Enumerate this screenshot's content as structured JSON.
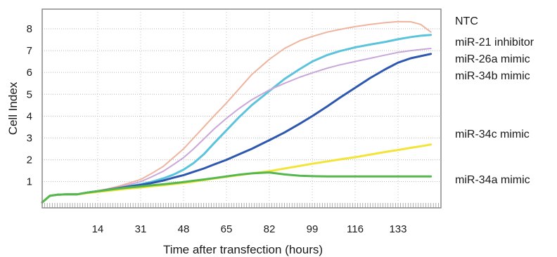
{
  "chart_data": {
    "type": "line",
    "xlabel": "Time after transfection (hours)",
    "ylabel": "Cell Index",
    "xlim": [
      -8,
      150
    ],
    "ylim": [
      -0.2,
      8.9
    ],
    "xticks": [
      14,
      31,
      48,
      65,
      82,
      99,
      116,
      133
    ],
    "yticks": [
      1,
      2,
      3,
      4,
      5,
      6,
      7,
      8
    ],
    "grid": true,
    "legend_position": "right",
    "series": [
      {
        "name": "NTC",
        "color": "#efb49e",
        "x": [
          -8,
          -5,
          -2,
          2,
          6,
          10,
          14,
          18,
          22,
          26,
          31,
          35,
          40,
          44,
          48,
          52,
          56,
          60,
          65,
          70,
          75,
          82,
          88,
          94,
          99,
          105,
          110,
          116,
          122,
          128,
          133,
          138,
          142,
          146
        ],
        "y": [
          0.05,
          0.35,
          0.4,
          0.42,
          0.42,
          0.5,
          0.58,
          0.67,
          0.78,
          0.92,
          1.1,
          1.35,
          1.7,
          2.1,
          2.5,
          3.0,
          3.5,
          4.0,
          4.6,
          5.25,
          5.9,
          6.6,
          7.1,
          7.45,
          7.65,
          7.85,
          7.97,
          8.1,
          8.2,
          8.28,
          8.33,
          8.32,
          8.2,
          7.85
        ]
      },
      {
        "name": "miR-21 inhibitor",
        "color": "#5bc4dc",
        "x": [
          -8,
          -5,
          -2,
          2,
          6,
          10,
          14,
          18,
          22,
          26,
          31,
          35,
          40,
          44,
          48,
          52,
          56,
          60,
          65,
          70,
          75,
          82,
          88,
          94,
          99,
          105,
          110,
          116,
          122,
          128,
          133,
          138,
          142,
          146
        ],
        "y": [
          0.05,
          0.35,
          0.4,
          0.42,
          0.42,
          0.5,
          0.56,
          0.63,
          0.7,
          0.78,
          0.88,
          0.98,
          1.15,
          1.32,
          1.55,
          1.85,
          2.25,
          2.75,
          3.35,
          3.95,
          4.5,
          5.15,
          5.7,
          6.15,
          6.5,
          6.8,
          6.98,
          7.15,
          7.28,
          7.4,
          7.52,
          7.62,
          7.68,
          7.72
        ]
      },
      {
        "name": "miR-26a mimic",
        "color": "#c9a8d9",
        "x": [
          -8,
          -5,
          -2,
          2,
          6,
          10,
          14,
          18,
          22,
          26,
          31,
          35,
          40,
          44,
          48,
          52,
          56,
          60,
          65,
          70,
          75,
          82,
          88,
          94,
          99,
          105,
          110,
          116,
          122,
          128,
          133,
          138,
          142,
          146
        ],
        "y": [
          0.05,
          0.35,
          0.4,
          0.42,
          0.42,
          0.5,
          0.57,
          0.65,
          0.74,
          0.85,
          1.0,
          1.2,
          1.48,
          1.78,
          2.1,
          2.5,
          2.95,
          3.4,
          3.9,
          4.35,
          4.75,
          5.2,
          5.5,
          5.78,
          5.98,
          6.2,
          6.35,
          6.5,
          6.65,
          6.8,
          6.92,
          7.0,
          7.05,
          7.1
        ]
      },
      {
        "name": "miR-34b mimic",
        "color": "#2e57b0",
        "x": [
          -8,
          -5,
          -2,
          2,
          6,
          10,
          14,
          18,
          22,
          26,
          31,
          35,
          40,
          44,
          48,
          52,
          56,
          60,
          65,
          70,
          75,
          82,
          88,
          94,
          99,
          105,
          110,
          116,
          122,
          128,
          133,
          138,
          142,
          146
        ],
        "y": [
          0.05,
          0.35,
          0.4,
          0.42,
          0.42,
          0.5,
          0.56,
          0.63,
          0.7,
          0.77,
          0.85,
          0.93,
          1.05,
          1.18,
          1.3,
          1.45,
          1.6,
          1.78,
          2.0,
          2.25,
          2.5,
          2.9,
          3.25,
          3.65,
          4.0,
          4.45,
          4.85,
          5.3,
          5.75,
          6.15,
          6.45,
          6.65,
          6.75,
          6.85
        ]
      },
      {
        "name": "miR-34c mimic",
        "color": "#f3e438",
        "x": [
          -8,
          -5,
          -2,
          2,
          6,
          10,
          14,
          18,
          22,
          26,
          31,
          35,
          40,
          44,
          48,
          52,
          56,
          60,
          65,
          70,
          75,
          82,
          88,
          94,
          99,
          105,
          110,
          116,
          122,
          128,
          133,
          138,
          142,
          146
        ],
        "y": [
          0.05,
          0.35,
          0.4,
          0.42,
          0.42,
          0.48,
          0.53,
          0.58,
          0.63,
          0.68,
          0.73,
          0.78,
          0.84,
          0.89,
          0.94,
          1.0,
          1.07,
          1.14,
          1.22,
          1.3,
          1.38,
          1.48,
          1.6,
          1.72,
          1.82,
          1.93,
          2.02,
          2.12,
          2.24,
          2.36,
          2.45,
          2.55,
          2.62,
          2.7
        ]
      },
      {
        "name": "miR-34a mimic",
        "color": "#55b84e",
        "x": [
          -8,
          -5,
          -2,
          2,
          6,
          10,
          14,
          18,
          22,
          26,
          31,
          35,
          40,
          44,
          48,
          52,
          56,
          60,
          65,
          70,
          75,
          82,
          88,
          94,
          99,
          105,
          110,
          116,
          122,
          128,
          133,
          138,
          142,
          146
        ],
        "y": [
          0.05,
          0.35,
          0.4,
          0.42,
          0.42,
          0.5,
          0.56,
          0.62,
          0.68,
          0.73,
          0.78,
          0.83,
          0.88,
          0.93,
          0.98,
          1.04,
          1.1,
          1.16,
          1.24,
          1.32,
          1.38,
          1.42,
          1.33,
          1.27,
          1.25,
          1.24,
          1.24,
          1.24,
          1.24,
          1.24,
          1.24,
          1.24,
          1.24,
          1.24
        ]
      }
    ]
  }
}
